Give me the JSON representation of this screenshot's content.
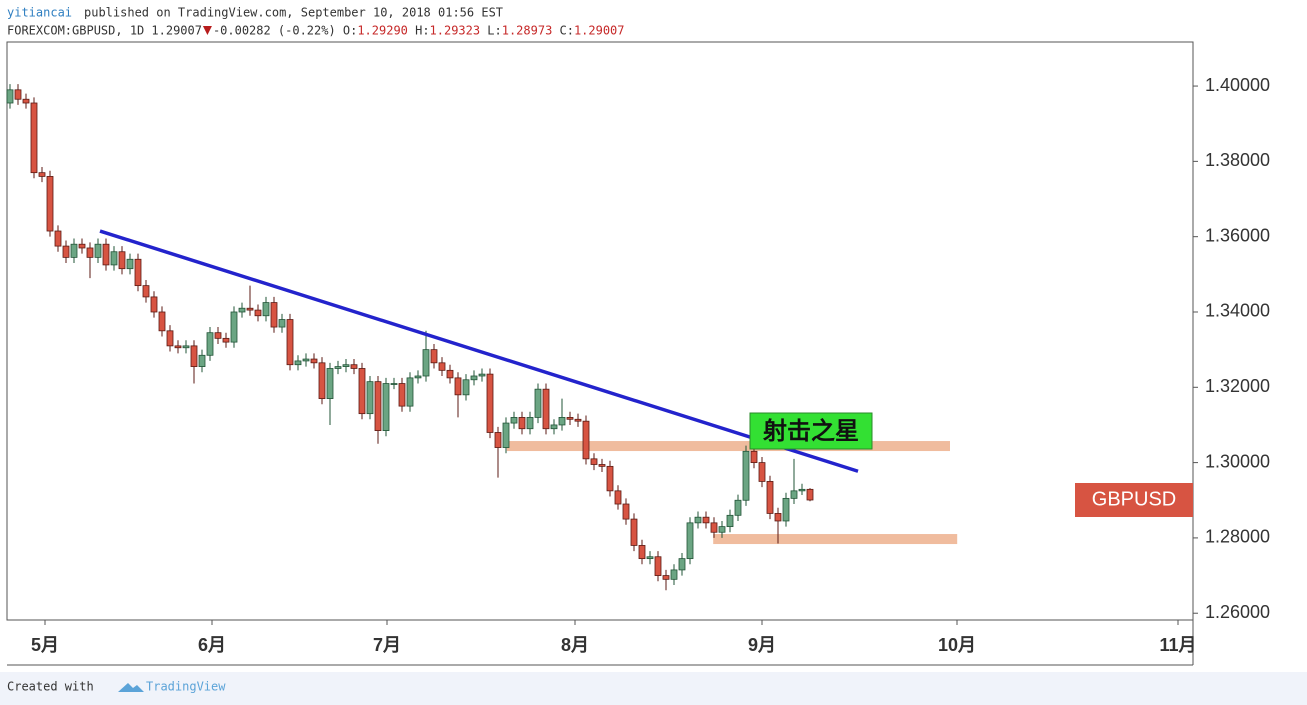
{
  "header": {
    "author": "yitiancai",
    "published": "published on TradingView.com, September 10, 2018 01:56 EST",
    "symbol": "FOREXCOM:GBPUSD, 1D",
    "last": "1.29007",
    "change": "-0.00282",
    "change_pct": "(-0.22%)",
    "ohlc": [
      {
        "label": "O:",
        "value": "1.29290"
      },
      {
        "label": "H:",
        "value": "1.29323"
      },
      {
        "label": "L:",
        "value": "1.28973"
      },
      {
        "label": "C:",
        "value": "1.29007"
      }
    ]
  },
  "footer": {
    "created": "Created with",
    "brand": "TradingView"
  },
  "chart_data": {
    "type": "candlestick",
    "up_color": "#6ba583",
    "down_color": "#d75442",
    "up_border": "#225437",
    "down_border": "#5b1a13",
    "xlim": [
      -0.375,
      147.875
    ],
    "ylim": [
      1.2582,
      1.4117
    ],
    "xticks": [
      {
        "value": 4.375,
        "label": "5月"
      },
      {
        "value": 25.25,
        "label": "6月"
      },
      {
        "value": 47.125,
        "label": "7月"
      },
      {
        "value": 70.625,
        "label": "8月"
      },
      {
        "value": 94,
        "label": "9月"
      },
      {
        "value": 118.375,
        "label": "10月"
      },
      {
        "value": 146,
        "label": "11月"
      }
    ],
    "yticks": [
      {
        "value": 1.26,
        "label": "1.26000"
      },
      {
        "value": 1.28,
        "label": "1.28000"
      },
      {
        "value": 1.3,
        "label": "1.30000"
      },
      {
        "value": 1.32,
        "label": "1.32000"
      },
      {
        "value": 1.34,
        "label": "1.34000"
      },
      {
        "value": 1.36,
        "label": "1.36000"
      },
      {
        "value": 1.38,
        "label": "1.38000"
      },
      {
        "value": 1.4,
        "label": "1.40000"
      }
    ],
    "grid": false,
    "open": [
      1.3955,
      1.399,
      1.3965,
      1.3955,
      1.377,
      1.376,
      1.3615,
      1.3575,
      1.3545,
      1.358,
      1.357,
      1.3545,
      1.358,
      1.3525,
      1.356,
      1.3515,
      1.354,
      1.347,
      1.344,
      1.34,
      1.335,
      1.331,
      1.3305,
      1.331,
      1.3255,
      1.3285,
      1.3345,
      1.333,
      1.332,
      1.34,
      1.341,
      1.3405,
      1.339,
      1.3425,
      1.336,
      1.338,
      1.326,
      1.327,
      1.3275,
      1.3265,
      1.317,
      1.325,
      1.3255,
      1.326,
      1.325,
      1.313,
      1.3215,
      1.3085,
      1.321,
      1.321,
      1.315,
      1.3225,
      1.323,
      1.33,
      1.3265,
      1.3245,
      1.3225,
      1.318,
      1.322,
      1.323,
      1.3235,
      1.308,
      1.304,
      1.3105,
      1.312,
      1.309,
      1.312,
      1.3195,
      1.309,
      1.31,
      1.312,
      1.3115,
      1.311,
      1.301,
      1.2995,
      1.299,
      1.2925,
      1.289,
      1.285,
      1.278,
      1.2745,
      1.275,
      1.27,
      1.269,
      1.2715,
      1.2745,
      1.284,
      1.2855,
      1.284,
      1.2815,
      1.283,
      1.286,
      1.29,
      1.303,
      1.3,
      1.295,
      1.2865,
      1.2845,
      1.2905,
      1.2925,
      1.2929
    ],
    "high": [
      1.4005,
      1.4005,
      1.398,
      1.397,
      1.3785,
      1.3775,
      1.363,
      1.359,
      1.3595,
      1.3595,
      1.3585,
      1.3595,
      1.3595,
      1.3575,
      1.3575,
      1.3555,
      1.3555,
      1.3485,
      1.3455,
      1.3415,
      1.3365,
      1.3325,
      1.3325,
      1.3325,
      1.33,
      1.336,
      1.336,
      1.3345,
      1.3415,
      1.3425,
      1.347,
      1.342,
      1.344,
      1.344,
      1.3395,
      1.3395,
      1.3285,
      1.329,
      1.329,
      1.328,
      1.3265,
      1.327,
      1.3275,
      1.3275,
      1.3265,
      1.323,
      1.323,
      1.3225,
      1.3225,
      1.3225,
      1.324,
      1.3245,
      1.335,
      1.3315,
      1.328,
      1.326,
      1.324,
      1.3235,
      1.3245,
      1.325,
      1.325,
      1.3095,
      1.312,
      1.3135,
      1.3135,
      1.3135,
      1.321,
      1.321,
      1.3115,
      1.317,
      1.3135,
      1.313,
      1.3125,
      1.3025,
      1.301,
      1.3005,
      1.294,
      1.2905,
      1.2865,
      1.2795,
      1.2765,
      1.2765,
      1.2715,
      1.273,
      1.276,
      1.2855,
      1.287,
      1.287,
      1.2855,
      1.2845,
      1.2875,
      1.2915,
      1.3045,
      1.3045,
      1.3015,
      1.2965,
      1.288,
      1.292,
      1.301,
      1.2944,
      1.29323
    ],
    "low": [
      1.394,
      1.395,
      1.394,
      1.3755,
      1.3745,
      1.36,
      1.356,
      1.353,
      1.353,
      1.3555,
      1.349,
      1.353,
      1.351,
      1.351,
      1.35,
      1.35,
      1.3455,
      1.3425,
      1.3385,
      1.3335,
      1.3295,
      1.329,
      1.329,
      1.321,
      1.324,
      1.327,
      1.3315,
      1.3305,
      1.3305,
      1.3385,
      1.339,
      1.3375,
      1.3375,
      1.3345,
      1.3345,
      1.3245,
      1.3245,
      1.3255,
      1.325,
      1.3155,
      1.31,
      1.3235,
      1.324,
      1.3235,
      1.3115,
      1.3115,
      1.305,
      1.307,
      1.3195,
      1.3135,
      1.3135,
      1.321,
      1.3215,
      1.325,
      1.323,
      1.321,
      1.312,
      1.3165,
      1.3205,
      1.3215,
      1.3065,
      1.296,
      1.3025,
      1.309,
      1.3075,
      1.3075,
      1.3105,
      1.3075,
      1.3075,
      1.3085,
      1.31,
      1.3095,
      1.2995,
      1.298,
      1.2975,
      1.291,
      1.2875,
      1.2835,
      1.2765,
      1.273,
      1.273,
      1.2685,
      1.2661,
      1.2675,
      1.27,
      1.273,
      1.2825,
      1.2825,
      1.28,
      1.28,
      1.2815,
      1.2845,
      1.2885,
      1.2985,
      1.2935,
      1.285,
      1.2785,
      1.283,
      1.289,
      1.2914,
      1.28973
    ],
    "close": [
      1.399,
      1.3965,
      1.3955,
      1.377,
      1.376,
      1.3615,
      1.3575,
      1.3545,
      1.358,
      1.357,
      1.3545,
      1.358,
      1.3525,
      1.356,
      1.3515,
      1.354,
      1.347,
      1.344,
      1.34,
      1.335,
      1.331,
      1.3305,
      1.331,
      1.3255,
      1.3285,
      1.3345,
      1.333,
      1.332,
      1.34,
      1.341,
      1.3405,
      1.339,
      1.3425,
      1.336,
      1.338,
      1.326,
      1.327,
      1.3275,
      1.3265,
      1.317,
      1.325,
      1.3255,
      1.326,
      1.325,
      1.313,
      1.3215,
      1.3085,
      1.321,
      1.321,
      1.315,
      1.3225,
      1.323,
      1.33,
      1.3265,
      1.3245,
      1.3225,
      1.318,
      1.322,
      1.323,
      1.3235,
      1.308,
      1.304,
      1.3105,
      1.312,
      1.309,
      1.312,
      1.3195,
      1.309,
      1.31,
      1.312,
      1.3115,
      1.311,
      1.301,
      1.2995,
      1.299,
      1.2925,
      1.289,
      1.285,
      1.278,
      1.2745,
      1.275,
      1.27,
      1.269,
      1.2715,
      1.2745,
      1.284,
      1.2855,
      1.284,
      1.2815,
      1.283,
      1.286,
      1.29,
      1.303,
      1.3,
      1.295,
      1.2865,
      1.2845,
      1.2905,
      1.2925,
      1.2929,
      1.29007
    ],
    "trendline": {
      "x": [
        11.25,
        106
      ],
      "y": [
        1.3615,
        1.2977
      ],
      "color": "#2323cc"
    },
    "zones": [
      {
        "x": [
          62.1,
          117.5
        ],
        "y": 1.3044
      },
      {
        "x": [
          87.9,
          118.4
        ],
        "y": 1.2797
      }
    ],
    "zone_color": "#efb899",
    "annotation": {
      "text": "射击之星",
      "color": "#33e033"
    },
    "symbol_label": "GBPUSD",
    "symbol_color": "#d75442"
  }
}
